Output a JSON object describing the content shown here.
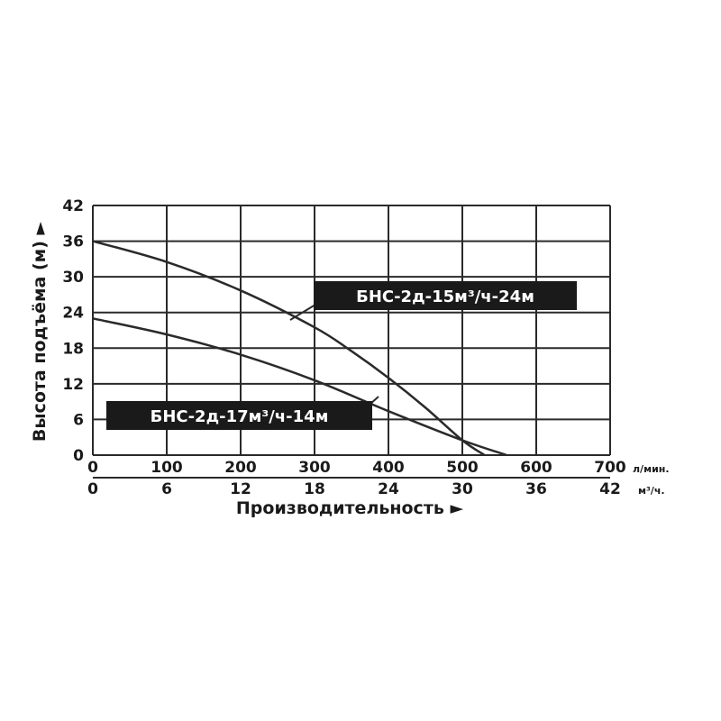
{
  "chart_data": {
    "type": "line",
    "xlabel": "Производительность ►",
    "ylabel": "Высота подъёма (м) ►",
    "x_unit_primary": "л/мин.",
    "x_unit_secondary": "м³/ч.",
    "xlim": [
      0,
      700
    ],
    "xlim_secondary": [
      0,
      42
    ],
    "ylim": [
      0,
      42
    ],
    "x_ticks": [
      "0",
      "100",
      "200",
      "300",
      "400",
      "500",
      "600",
      "700"
    ],
    "x_ticks_secondary": [
      "0",
      "6",
      "12",
      "18",
      "24",
      "30",
      "36",
      "42"
    ],
    "y_ticks": [
      "0",
      "6",
      "12",
      "18",
      "24",
      "30",
      "36",
      "42"
    ],
    "grid": true,
    "legend": "callouts on curves",
    "line_color": "#2a2a2a",
    "series": [
      {
        "name": "БНС-2д-15м³/ч-24м",
        "x": [
          0,
          100,
          200,
          300,
          350,
          400,
          450,
          500,
          530
        ],
        "y": [
          36,
          32.5,
          27.7,
          21.5,
          17.5,
          13,
          8,
          2.5,
          0
        ]
      },
      {
        "name": "БНС-2д-17м³/ч-14м",
        "x": [
          0,
          100,
          200,
          300,
          400,
          500,
          560
        ],
        "y": [
          23,
          20.3,
          16.9,
          12.6,
          7.4,
          2.5,
          0
        ]
      }
    ]
  }
}
